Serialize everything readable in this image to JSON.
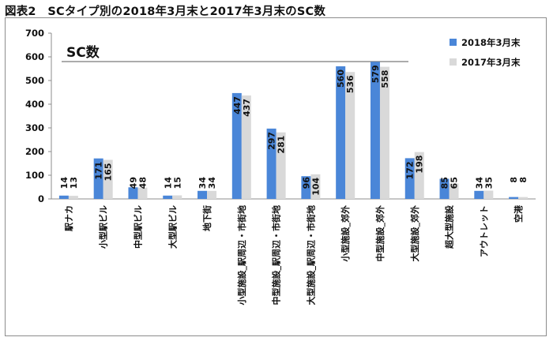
{
  "figure_title": "図表2　SCタイプ別の2018年3月末と2017年3月末のSC数",
  "chart_data": {
    "type": "bar",
    "title": "SC数",
    "ylim": [
      0,
      700
    ],
    "yticks": [
      0,
      100,
      200,
      300,
      400,
      500,
      600,
      700
    ],
    "grid": false,
    "legend_position": "top-right",
    "categories": [
      "駅ナカ",
      "小型駅ビル",
      "中型駅ビル",
      "大型駅ビル",
      "地下街",
      "小型施設_駅周辺・市街地",
      "中型施設_駅周辺・市街地",
      "大型施設_駅周辺・市街地",
      "小型施設_郊外",
      "中型施設_郊外",
      "大型施設_郊外",
      "超大型施設",
      "アウトレット",
      "空港"
    ],
    "series": [
      {
        "name": "2018年3月末",
        "color": "#4a86d8",
        "values": [
          14,
          171,
          49,
          14,
          34,
          447,
          297,
          96,
          560,
          579,
          172,
          85,
          34,
          8
        ]
      },
      {
        "name": "2017年3月末",
        "color": "#d9d9d9",
        "values": [
          13,
          165,
          48,
          15,
          34,
          437,
          281,
          104,
          536,
          558,
          198,
          65,
          35,
          8
        ]
      }
    ]
  }
}
